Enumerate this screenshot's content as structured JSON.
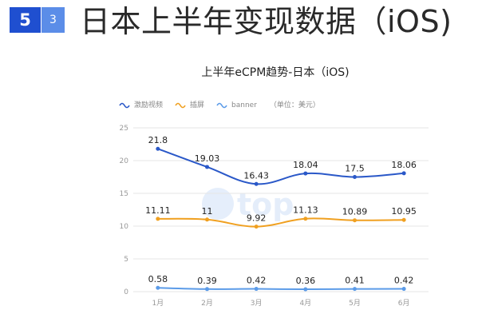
{
  "header": {
    "section_number": "5",
    "sub_number": "3",
    "title": "日本上半年变现数据（iOS)"
  },
  "watermark": {
    "text": "top"
  },
  "colors": {
    "series_1": "#2a58c8",
    "series_2": "#f0a020",
    "series_3": "#5b9be8",
    "badge_main": "#1f4fd0",
    "badge_sub": "#5b8de8"
  },
  "chart_data": {
    "type": "line",
    "title": "上半年eCPM趋势-日本（iOS)",
    "legend_unit": "（单位：美元）",
    "legend_position": "top-left",
    "categories": [
      "1月",
      "2月",
      "3月",
      "4月",
      "5月",
      "6月"
    ],
    "ylim": [
      0,
      25
    ],
    "yticks": [
      0,
      5,
      10,
      15,
      20,
      25
    ],
    "grid": true,
    "xlabel": "",
    "ylabel": "",
    "series": [
      {
        "name": "激励视频",
        "values": [
          21.8,
          19.03,
          16.43,
          18.04,
          17.5,
          18.06
        ],
        "labels": [
          "21.8",
          "19.03",
          "16.43",
          "18.04",
          "17.5",
          "18.06"
        ]
      },
      {
        "name": "插屏",
        "values": [
          11.11,
          11,
          9.92,
          11.13,
          10.89,
          10.95
        ],
        "labels": [
          "11.11",
          "11",
          "9.92",
          "11.13",
          "10.89",
          "10.95"
        ]
      },
      {
        "name": "banner",
        "values": [
          0.58,
          0.39,
          0.42,
          0.36,
          0.41,
          0.42
        ],
        "labels": [
          "0.58",
          "0.39",
          "0.42",
          "0.36",
          "0.41",
          "0.42"
        ]
      }
    ]
  }
}
